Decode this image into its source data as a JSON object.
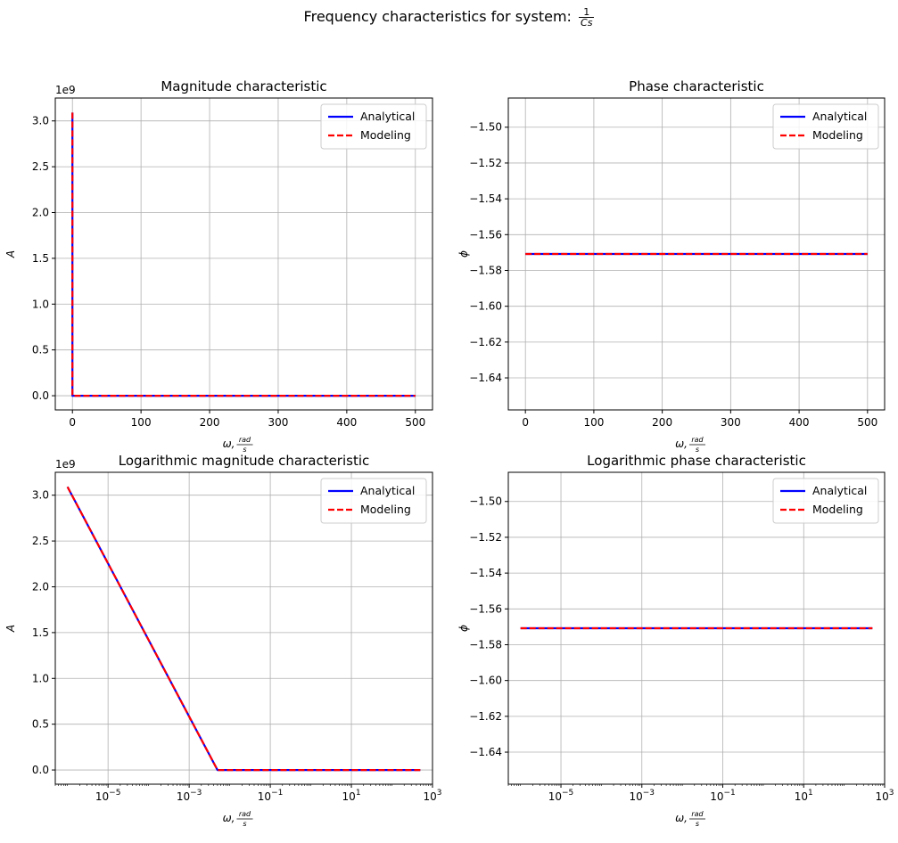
{
  "figure": {
    "title_prefix": "Frequency characteristics for system: ",
    "title_fraction_numerator": "1",
    "title_fraction_denominator": "Cs"
  },
  "chart_data": [
    {
      "type": "line",
      "title": "Magnitude characteristic",
      "xlabel": "ω, rad/s",
      "ylabel": "A",
      "xscale": "linear",
      "yscale": "linear",
      "xlim": [
        -25,
        525
      ],
      "ylim": [
        -0.155,
        3.25
      ],
      "y_multiplier_label": "1e9",
      "xticks": [
        0,
        100,
        200,
        300,
        400,
        500
      ],
      "xtick_labels": [
        "0",
        "100",
        "200",
        "300",
        "400",
        "500"
      ],
      "yticks": [
        0,
        0.5,
        1.0,
        1.5,
        2.0,
        2.5,
        3.0
      ],
      "ytick_labels": [
        "0.0",
        "0.5",
        "1.0",
        "1.5",
        "2.0",
        "2.5",
        "3.0"
      ],
      "grid": true,
      "legend_position": "top-right",
      "series": [
        {
          "name": "Analytical",
          "color": "#0000ff",
          "style": "solid",
          "x": [
            1e-07,
            0.005,
            100,
            200,
            300,
            400,
            500
          ],
          "y": [
            3.09,
            0.0,
            0.0,
            0.0,
            0.0,
            0.0,
            0.0
          ]
        },
        {
          "name": "Modeling",
          "color": "#ff0000",
          "style": "dashed",
          "x": [
            1e-07,
            0.005,
            100,
            200,
            300,
            400,
            500
          ],
          "y": [
            3.09,
            0.0,
            0.0,
            0.0,
            0.0,
            0.0,
            0.0
          ]
        }
      ]
    },
    {
      "type": "line",
      "title": "Phase characteristic",
      "xlabel": "ω, rad/s",
      "ylabel": "ϕ",
      "xscale": "linear",
      "yscale": "linear",
      "xlim": [
        -25,
        525
      ],
      "ylim": [
        -1.6579,
        -1.4837
      ],
      "xticks": [
        0,
        100,
        200,
        300,
        400,
        500
      ],
      "xtick_labels": [
        "0",
        "100",
        "200",
        "300",
        "400",
        "500"
      ],
      "yticks": [
        -1.64,
        -1.62,
        -1.6,
        -1.58,
        -1.56,
        -1.54,
        -1.52,
        -1.5
      ],
      "ytick_labels": [
        "−1.64",
        "−1.62",
        "−1.60",
        "−1.58",
        "−1.56",
        "−1.54",
        "−1.52",
        "−1.50"
      ],
      "grid": true,
      "legend_position": "top-right",
      "series": [
        {
          "name": "Analytical",
          "color": "#0000ff",
          "style": "solid",
          "x": [
            0,
            100,
            200,
            300,
            400,
            500
          ],
          "y": [
            -1.5708,
            -1.5708,
            -1.5708,
            -1.5708,
            -1.5708,
            -1.5708
          ]
        },
        {
          "name": "Modeling",
          "color": "#ff0000",
          "style": "dashed",
          "x": [
            0,
            100,
            200,
            300,
            400,
            500
          ],
          "y": [
            -1.5708,
            -1.5708,
            -1.5708,
            -1.5708,
            -1.5708,
            -1.5708
          ]
        }
      ]
    },
    {
      "type": "line",
      "title": "Logarithmic magnitude characteristic",
      "xlabel": "ω, rad/s",
      "ylabel": "A",
      "xscale": "log",
      "yscale": "linear",
      "xlim": [
        5e-07,
        1000
      ],
      "ylim": [
        -0.155,
        3.25
      ],
      "y_multiplier_label": "1e9",
      "xticks": [
        1e-05,
        0.001,
        0.1,
        10,
        1000
      ],
      "xtick_labels": [
        "10",
        "10",
        "10",
        "10",
        "10"
      ],
      "xtick_exponents": [
        "−5",
        "−3",
        "−1",
        "1",
        "3"
      ],
      "yticks": [
        0,
        0.5,
        1.0,
        1.5,
        2.0,
        2.5,
        3.0
      ],
      "ytick_labels": [
        "0.0",
        "0.5",
        "1.0",
        "1.5",
        "2.0",
        "2.5",
        "3.0"
      ],
      "grid": true,
      "legend_position": "top-right",
      "series": [
        {
          "name": "Analytical",
          "color": "#0000ff",
          "style": "solid",
          "x": [
            1e-06,
            0.005,
            1,
            100,
            500
          ],
          "y": [
            3.09,
            0.0,
            0.0,
            0.0,
            0.0
          ]
        },
        {
          "name": "Modeling",
          "color": "#ff0000",
          "style": "dashed",
          "x": [
            1e-06,
            0.005,
            1,
            100,
            500
          ],
          "y": [
            3.09,
            0.0,
            0.0,
            0.0,
            0.0
          ]
        }
      ]
    },
    {
      "type": "line",
      "title": "Logarithmic phase characteristic",
      "xlabel": "ω, rad/s",
      "ylabel": "ϕ",
      "xscale": "log",
      "yscale": "linear",
      "xlim": [
        5e-07,
        1000
      ],
      "ylim": [
        -1.6579,
        -1.4837
      ],
      "xticks": [
        1e-05,
        0.001,
        0.1,
        10,
        1000
      ],
      "xtick_labels": [
        "10",
        "10",
        "10",
        "10",
        "10"
      ],
      "xtick_exponents": [
        "−5",
        "−3",
        "−1",
        "1",
        "3"
      ],
      "yticks": [
        -1.64,
        -1.62,
        -1.6,
        -1.58,
        -1.56,
        -1.54,
        -1.52,
        -1.5
      ],
      "ytick_labels": [
        "−1.64",
        "−1.62",
        "−1.60",
        "−1.58",
        "−1.56",
        "−1.54",
        "−1.52",
        "−1.50"
      ],
      "grid": true,
      "legend_position": "top-right",
      "series": [
        {
          "name": "Analytical",
          "color": "#0000ff",
          "style": "solid",
          "x": [
            1e-06,
            0.001,
            1,
            100,
            500
          ],
          "y": [
            -1.5708,
            -1.5708,
            -1.5708,
            -1.5708,
            -1.5708
          ]
        },
        {
          "name": "Modeling",
          "color": "#ff0000",
          "style": "dashed",
          "x": [
            1e-06,
            0.001,
            1,
            100,
            500
          ],
          "y": [
            -1.5708,
            -1.5708,
            -1.5708,
            -1.5708,
            -1.5708
          ]
        }
      ]
    }
  ]
}
